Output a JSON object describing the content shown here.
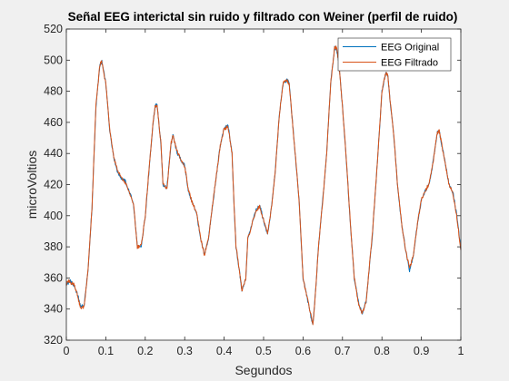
{
  "chart_data": {
    "type": "line",
    "title": "Señal EEG interictal sin ruido y filtrado con Weiner (perfil de ruido)",
    "xlabel": "Segundos",
    "ylabel": "microVoltios",
    "xlim": [
      0,
      1
    ],
    "ylim": [
      320,
      520
    ],
    "xticks": [
      0,
      0.1,
      0.2,
      0.3,
      0.4,
      0.5,
      0.6,
      0.7,
      0.8,
      0.9,
      1
    ],
    "xtick_labels": [
      "0",
      "0.1",
      "0.2",
      "0.3",
      "0.4",
      "0.5",
      "0.6",
      "0.7",
      "0.8",
      "0.9",
      "1"
    ],
    "yticks": [
      320,
      340,
      360,
      380,
      400,
      420,
      440,
      460,
      480,
      500,
      520
    ],
    "ytick_labels": [
      "320",
      "340",
      "360",
      "380",
      "400",
      "420",
      "440",
      "460",
      "480",
      "500",
      "520"
    ],
    "grid": false,
    "legend_position": "top-right",
    "series": [
      {
        "name": "EEG Original",
        "color": "#0072BD"
      },
      {
        "name": "EEG Filtrado",
        "color": "#D95319"
      }
    ],
    "x": [
      0,
      0.005,
      0.01,
      0.02,
      0.03,
      0.035,
      0.045,
      0.055,
      0.065,
      0.075,
      0.085,
      0.09,
      0.1,
      0.11,
      0.12,
      0.13,
      0.14,
      0.15,
      0.17,
      0.18,
      0.19,
      0.2,
      0.21,
      0.22,
      0.225,
      0.23,
      0.24,
      0.245,
      0.255,
      0.265,
      0.27,
      0.28,
      0.29,
      0.3,
      0.31,
      0.32,
      0.33,
      0.34,
      0.35,
      0.36,
      0.37,
      0.38,
      0.39,
      0.4,
      0.41,
      0.42,
      0.425,
      0.43,
      0.44,
      0.445,
      0.455,
      0.46,
      0.48,
      0.49,
      0.5,
      0.51,
      0.52,
      0.53,
      0.54,
      0.55,
      0.56,
      0.565,
      0.575,
      0.59,
      0.6,
      0.61,
      0.62,
      0.625,
      0.63,
      0.64,
      0.65,
      0.66,
      0.67,
      0.68,
      0.685,
      0.69,
      0.7,
      0.71,
      0.72,
      0.73,
      0.74,
      0.75,
      0.76,
      0.775,
      0.79,
      0.8,
      0.81,
      0.815,
      0.82,
      0.83,
      0.84,
      0.85,
      0.86,
      0.87,
      0.88,
      0.89,
      0.9,
      0.91,
      0.92,
      0.93,
      0.94,
      0.945,
      0.95,
      0.96,
      0.97,
      0.98,
      0.99,
      1
    ],
    "original": [
      356,
      357,
      358,
      355,
      348,
      342,
      342,
      365,
      405,
      470,
      497,
      499,
      485,
      455,
      438,
      428,
      424,
      422,
      408,
      380,
      380,
      400,
      430,
      460,
      470,
      472,
      445,
      420,
      418,
      445,
      452,
      441,
      436,
      432,
      415,
      408,
      402,
      385,
      375,
      385,
      405,
      425,
      445,
      456,
      458,
      440,
      408,
      380,
      362,
      352,
      360,
      385,
      403,
      407,
      397,
      388,
      405,
      430,
      465,
      486,
      487,
      485,
      455,
      410,
      360,
      348,
      335,
      330,
      345,
      383,
      410,
      440,
      485,
      508,
      507,
      500,
      470,
      435,
      395,
      360,
      345,
      337,
      345,
      385,
      440,
      480,
      492,
      490,
      475,
      452,
      418,
      395,
      378,
      365,
      375,
      395,
      410,
      416,
      420,
      435,
      453,
      455,
      448,
      435,
      420,
      415,
      400,
      378
    ],
    "filtered": [
      356,
      358,
      357,
      356,
      347,
      341,
      341,
      365,
      405,
      471,
      497,
      499,
      485,
      456,
      438,
      429,
      424,
      421,
      408,
      380,
      381,
      400,
      431,
      460,
      470,
      471,
      446,
      420,
      417,
      446,
      451,
      442,
      436,
      432,
      416,
      408,
      402,
      386,
      375,
      385,
      406,
      425,
      445,
      456,
      457,
      440,
      408,
      381,
      362,
      352,
      360,
      385,
      403,
      406,
      397,
      389,
      405,
      430,
      465,
      486,
      487,
      484,
      455,
      410,
      360,
      348,
      336,
      330,
      345,
      383,
      410,
      440,
      485,
      508,
      508,
      500,
      470,
      436,
      395,
      360,
      344,
      337,
      345,
      386,
      440,
      480,
      492,
      490,
      476,
      452,
      418,
      395,
      378,
      366,
      375,
      395,
      410,
      416,
      421,
      435,
      453,
      455,
      448,
      434,
      420,
      414,
      399,
      378
    ]
  }
}
